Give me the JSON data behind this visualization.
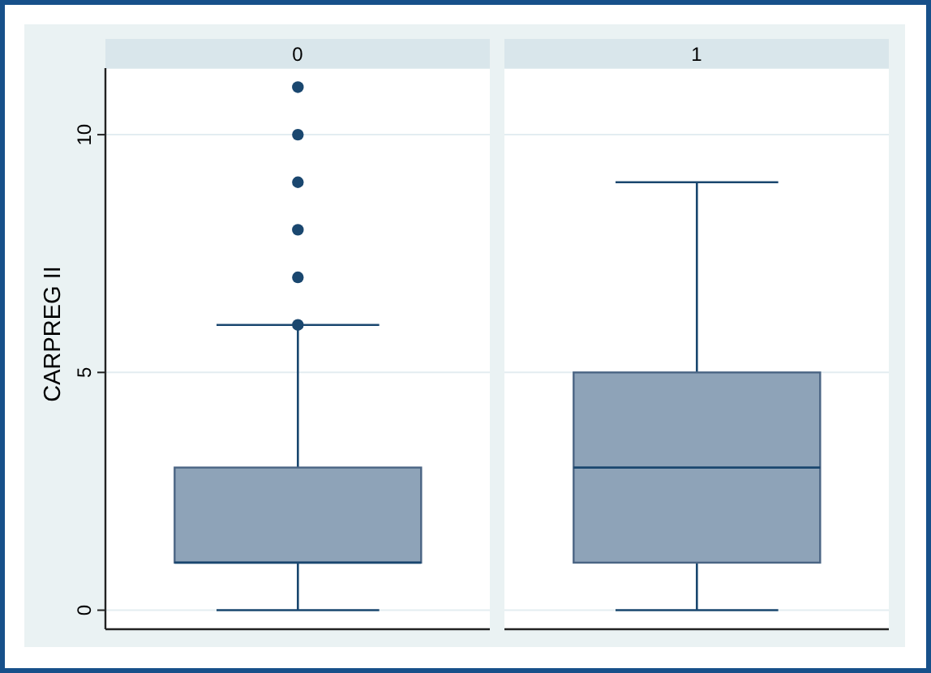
{
  "chart_data": {
    "type": "box",
    "categories": [
      "0",
      "1"
    ],
    "ylabel": "CARPREG II",
    "ylim": [
      -0.4,
      11.4
    ],
    "yticks": [
      0,
      5,
      10
    ],
    "grid": "y",
    "series": [
      {
        "color": "#8ea3b8",
        "boxes": [
          {
            "low": 0,
            "q1": 1,
            "median": 1,
            "q3": 3,
            "high": 6,
            "outliers": [
              6,
              7,
              8,
              9,
              10,
              11
            ]
          },
          {
            "low": 0,
            "q1": 1,
            "median": 3,
            "q3": 5,
            "high": 9
          }
        ]
      }
    ]
  }
}
